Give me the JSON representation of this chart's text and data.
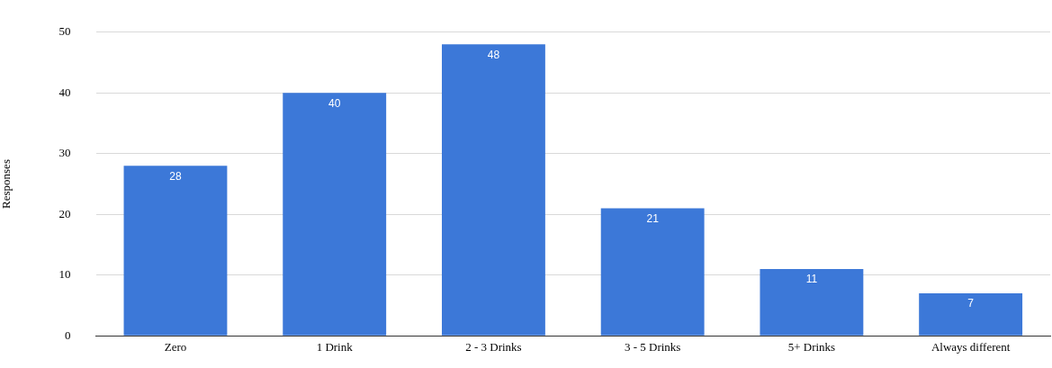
{
  "chart_data": {
    "type": "bar",
    "ylabel": "Responses",
    "categories": [
      "Zero",
      "1 Drink",
      "2 - 3 Drinks",
      "3 - 5 Drinks",
      "5+ Drinks",
      "Always different"
    ],
    "values": [
      28,
      40,
      48,
      21,
      11,
      7
    ],
    "color": "#3c78d8",
    "ylim": [
      0,
      50
    ],
    "yticks": [
      0,
      10,
      20,
      30,
      40,
      50
    ],
    "grid": "y",
    "legend": false,
    "data_labels": true
  }
}
